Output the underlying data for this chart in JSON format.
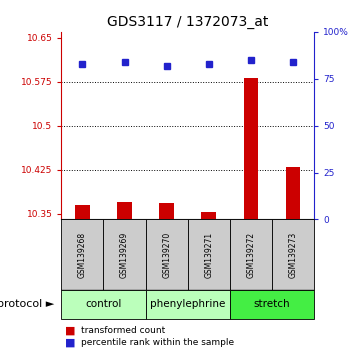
{
  "title": "GDS3117 / 1372073_at",
  "samples": [
    "GSM139268",
    "GSM139269",
    "GSM139270",
    "GSM139271",
    "GSM139272",
    "GSM139273"
  ],
  "red_values": [
    10.365,
    10.37,
    10.368,
    10.352,
    10.582,
    10.43
  ],
  "blue_values": [
    83,
    84,
    82,
    83,
    85,
    84
  ],
  "ylim_left": [
    10.34,
    10.66
  ],
  "ylim_right": [
    0,
    100
  ],
  "yticks_left": [
    10.35,
    10.425,
    10.5,
    10.575,
    10.65
  ],
  "ytick_labels_left": [
    "10.35",
    "10.425",
    "10.5",
    "10.575",
    "10.65"
  ],
  "yticks_right": [
    0,
    25,
    50,
    75,
    100
  ],
  "ytick_labels_right": [
    "0",
    "25",
    "50",
    "75",
    "100%"
  ],
  "hlines": [
    10.425,
    10.5,
    10.575
  ],
  "bar_color": "#cc0000",
  "dot_color": "#2222cc",
  "left_axis_color": "#cc0000",
  "right_axis_color": "#2222cc",
  "legend_red": "transformed count",
  "legend_blue": "percentile rank within the sample",
  "protocol_label": "protocol",
  "group_configs": [
    {
      "name": "control",
      "start": 0,
      "end": 1,
      "color": "#bbffbb"
    },
    {
      "name": "phenylephrine",
      "start": 2,
      "end": 3,
      "color": "#bbffbb"
    },
    {
      "name": "stretch",
      "start": 4,
      "end": 5,
      "color": "#44ee44"
    }
  ],
  "sample_box_color": "#cccccc",
  "title_fontsize": 10
}
